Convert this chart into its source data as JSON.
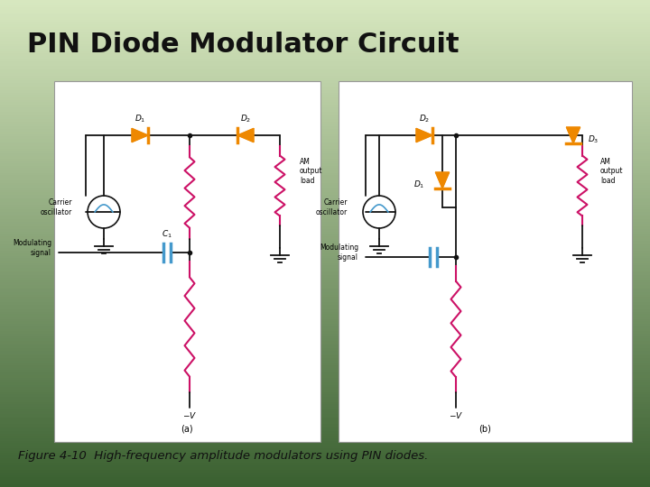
{
  "title": "PIN Diode Modulator Circuit",
  "caption": "Figure 4-10  High-frequency amplitude modulators using PIN diodes.",
  "bg_top": "#d8e8c0",
  "bg_bottom": "#3a6030",
  "title_color": "#111111",
  "title_fontsize": 22,
  "caption_fontsize": 9.5,
  "caption_color": "#111111",
  "diode_color": "#ee8800",
  "resistor_color": "#cc1166",
  "cap_color": "#4499cc",
  "wire_color": "#111111",
  "label_a": "(a)",
  "label_b": "(b)"
}
